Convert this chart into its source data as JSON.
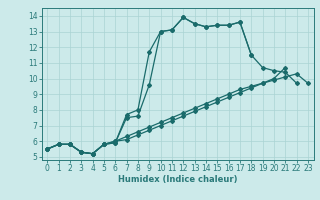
{
  "xlabel": "Humidex (Indice chaleur)",
  "xlim": [
    -0.5,
    23.5
  ],
  "ylim": [
    4.8,
    14.5
  ],
  "xticks": [
    0,
    1,
    2,
    3,
    4,
    5,
    6,
    7,
    8,
    9,
    10,
    11,
    12,
    13,
    14,
    15,
    16,
    17,
    18,
    19,
    20,
    21,
    22,
    23
  ],
  "yticks": [
    5,
    6,
    7,
    8,
    9,
    10,
    11,
    12,
    13,
    14
  ],
  "bg_color": "#cceaea",
  "line_color": "#1a6b6b",
  "line1_x": [
    0,
    1,
    2,
    3,
    4,
    5,
    6,
    7,
    8,
    9,
    10,
    11,
    12,
    13,
    14,
    15,
    16,
    17,
    18
  ],
  "line1_y": [
    5.5,
    5.8,
    5.8,
    5.3,
    5.2,
    5.8,
    5.9,
    7.7,
    8.0,
    11.7,
    13.0,
    13.1,
    13.9,
    13.5,
    13.3,
    13.4,
    13.4,
    13.6,
    11.5
  ],
  "line2_x": [
    0,
    1,
    2,
    3,
    4,
    5,
    6,
    7,
    8,
    9,
    10,
    11,
    12,
    13,
    14,
    15,
    16,
    17,
    18,
    19,
    20,
    21,
    22
  ],
  "line2_y": [
    5.5,
    5.8,
    5.8,
    5.3,
    5.2,
    5.8,
    5.9,
    7.5,
    7.6,
    9.6,
    13.0,
    13.1,
    13.9,
    13.5,
    13.3,
    13.4,
    13.4,
    13.6,
    11.5,
    10.7,
    10.5,
    10.4,
    9.7
  ],
  "line3_x": [
    0,
    1,
    2,
    3,
    4,
    5,
    6,
    7,
    8,
    9,
    10,
    11,
    12,
    13,
    14,
    15,
    16,
    17,
    18,
    19,
    20,
    21,
    22,
    23
  ],
  "line3_y": [
    5.5,
    5.8,
    5.8,
    5.3,
    5.2,
    5.8,
    6.0,
    6.3,
    6.6,
    6.9,
    7.2,
    7.5,
    7.8,
    8.1,
    8.4,
    8.7,
    9.0,
    9.3,
    9.5,
    9.7,
    9.9,
    10.1,
    10.3,
    9.7
  ],
  "line4_x": [
    0,
    1,
    2,
    3,
    4,
    5,
    6,
    7,
    8,
    9,
    10,
    11,
    12,
    13,
    14,
    15,
    16,
    17,
    18,
    19,
    20,
    21
  ],
  "line4_y": [
    5.5,
    5.8,
    5.8,
    5.3,
    5.2,
    5.8,
    6.0,
    6.1,
    6.4,
    6.7,
    7.0,
    7.3,
    7.6,
    7.9,
    8.2,
    8.5,
    8.8,
    9.1,
    9.4,
    9.7,
    10.0,
    10.7
  ],
  "grid_color": "#aad4d4",
  "spine_color": "#2a7a7a",
  "xlabel_fontsize": 6.0,
  "tick_fontsize": 5.5,
  "marker_size": 2.0,
  "linewidth": 0.9
}
